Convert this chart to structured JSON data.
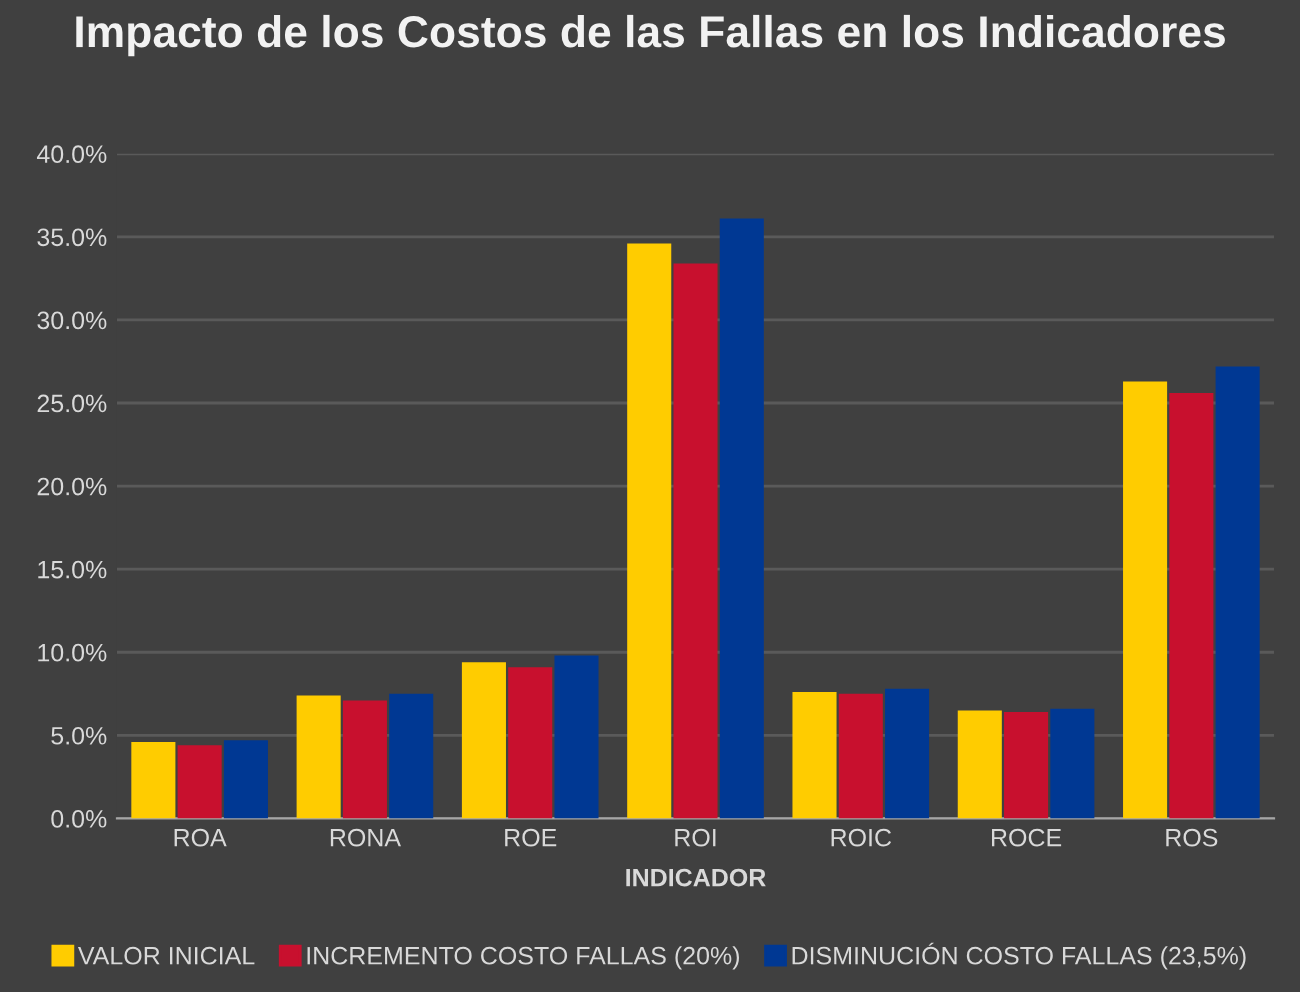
{
  "chart_data": {
    "type": "bar",
    "title": "Impacto de los Costos de las Fallas en los Indicadores",
    "xlabel": "INDICADOR",
    "categories": [
      "ROA",
      "RONA",
      "ROE",
      "ROI",
      "ROIC",
      "ROCE",
      "ROS"
    ],
    "series": [
      {
        "name": "VALOR INICIAL",
        "color": "#ffcc00",
        "values": [
          4.6,
          7.4,
          9.4,
          34.6,
          7.6,
          6.5,
          26.3
        ]
      },
      {
        "name": "INCREMENTO COSTO FALLAS (20%)",
        "color": "#c8102e",
        "values": [
          4.4,
          7.1,
          9.1,
          33.4,
          7.5,
          6.4,
          25.6
        ]
      },
      {
        "name": "DISMINUCIÓN COSTO FALLAS (23,5%)",
        "color": "#003893",
        "values": [
          4.7,
          7.5,
          9.8,
          36.1,
          7.8,
          6.6,
          27.2
        ]
      }
    ],
    "ylim": [
      0,
      40
    ],
    "yticks": [
      {
        "value": 0,
        "label": "0.0%"
      },
      {
        "value": 5,
        "label": "5.0%"
      },
      {
        "value": 10,
        "label": "10.0%"
      },
      {
        "value": 15,
        "label": "15.0%"
      },
      {
        "value": 20,
        "label": "20.0%"
      },
      {
        "value": 25,
        "label": "25.0%"
      },
      {
        "value": 30,
        "label": "30.0%"
      },
      {
        "value": 35,
        "label": "35.0%"
      },
      {
        "value": 40,
        "label": "40.0%"
      }
    ],
    "grid": "y",
    "legend": "bottom"
  }
}
